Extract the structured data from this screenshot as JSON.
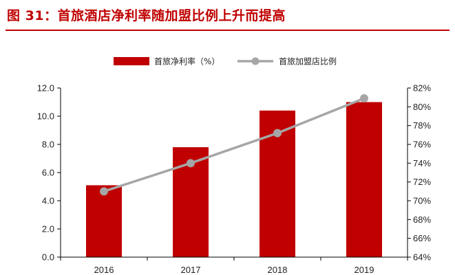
{
  "figure_title": "图 31：首旅酒店净利率随加盟比例上升而提高",
  "chart_data": {
    "type": "bar",
    "categories": [
      "2016",
      "2017",
      "2018",
      "2019"
    ],
    "series": [
      {
        "name": "首旅净利率（%）",
        "type": "bar",
        "axis": "left",
        "color": "#c00000",
        "values": [
          5.1,
          7.8,
          10.4,
          11.0
        ]
      },
      {
        "name": "首旅加盟店比例",
        "type": "line",
        "axis": "right",
        "color": "#a6a6a6",
        "values": [
          71.0,
          74.0,
          77.2,
          80.9
        ]
      }
    ],
    "ylim": [
      0,
      12
    ],
    "y_ticks": [
      "0.0",
      "2.0",
      "4.0",
      "6.0",
      "8.0",
      "10.0",
      "12.0"
    ],
    "y2lim": [
      64,
      82
    ],
    "y2_ticks": [
      "64%",
      "66%",
      "68%",
      "70%",
      "72%",
      "74%",
      "76%",
      "78%",
      "80%",
      "82%"
    ],
    "legend_position": "top-center",
    "grid": false
  }
}
